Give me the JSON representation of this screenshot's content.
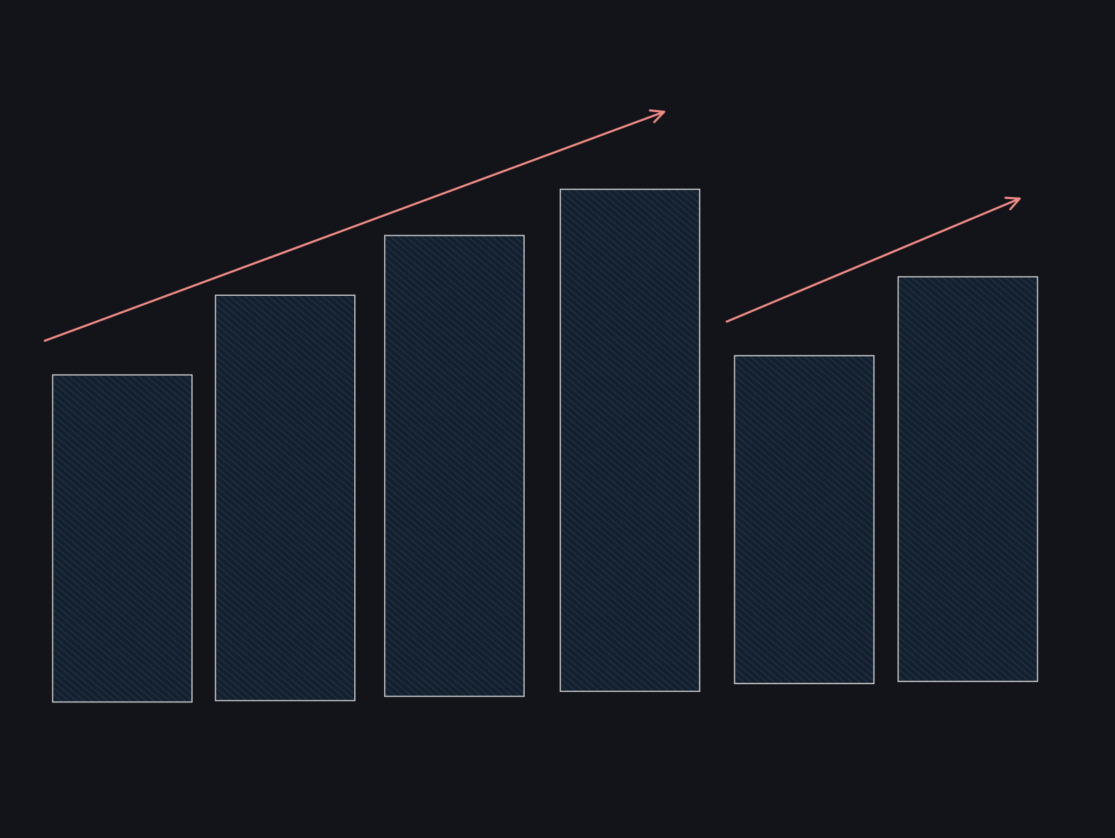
{
  "canvas": {
    "background": "#121419"
  },
  "elements": {
    "bars": {
      "stroke_color": "#d4d4d4",
      "fill_color": "#16202c",
      "hatch_color": "#1f4a78"
    },
    "arrows": {
      "stroke_color": "#f08a84"
    }
  }
}
